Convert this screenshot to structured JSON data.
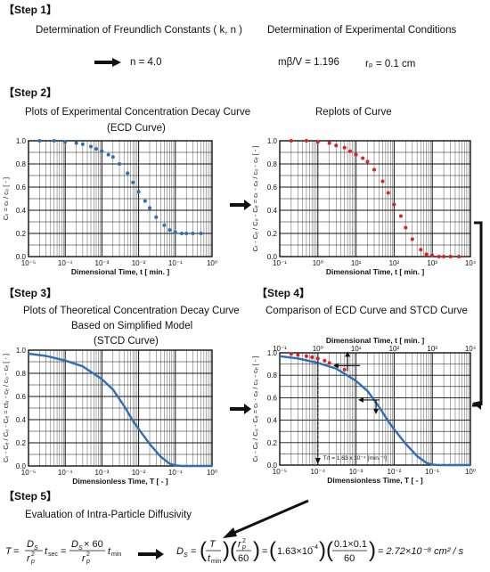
{
  "step1": {
    "label": "【Step 1】",
    "freundlich": "Determination of Freundlich Constants ( k, n )",
    "experimental": "Determination of Experimental Conditions",
    "n_value": "n = 4.0",
    "mbv_value": "mβ/V = 1.196",
    "rp_value": "rₚ = 0.1 cm"
  },
  "step2": {
    "label": "【Step 2】",
    "plots_title": "Plots of Experimental Concentration Decay Curve",
    "ecd": "(ECD Curve)",
    "replots_title": "Replots of Curve"
  },
  "step3": {
    "label": "【Step 3】",
    "title1": "Plots of Theoretical Concentration Decay Curve",
    "title2": "Based on Simplified Model",
    "stcd": "(STCD Curve)"
  },
  "step4": {
    "label": "【Step 4】",
    "title": "Comparison of ECD Curve  and STCD Curve",
    "annotation": "T/t = 1.63 x 10⁻⁴ [min.⁻¹]"
  },
  "step5": {
    "label": "【Step 5】",
    "title": "Evaluation of Intra-Particle Diffusivity",
    "result": "= 2.72×10⁻⁸ cm² / s"
  },
  "colors": {
    "blue": "#2f6db5",
    "red": "#e02020",
    "grid": "#222222"
  },
  "chart_data": [
    {
      "type": "scatter",
      "title": "Plots of Experimental Concentration Decay Curve",
      "xlabel": "Dimensional Time, t  [ min. ]",
      "ylabel": "Cₜ = cₜ / c₀  [ - ]",
      "xscale": "log",
      "xlim": [
        1e-05,
        1
      ],
      "ylim": [
        0,
        1
      ],
      "xtick_labels": [
        "10⁻⁵",
        "10⁻⁴",
        "10⁻³",
        "10⁻²",
        "10⁻¹",
        "10⁰"
      ],
      "ytick_labels": [
        "0.0",
        "0.2",
        "0.4",
        "0.6",
        "0.8",
        "1.0"
      ],
      "color": "#2f6db5",
      "x": [
        2e-05,
        5e-05,
        0.0001,
        0.0002,
        0.0003,
        0.0005,
        0.0007,
        0.001,
        0.0015,
        0.002,
        0.003,
        0.005,
        0.007,
        0.01,
        0.015,
        0.02,
        0.03,
        0.05,
        0.07,
        0.1,
        0.15,
        0.2,
        0.3,
        0.5
      ],
      "y": [
        1.0,
        1.0,
        0.99,
        0.98,
        0.97,
        0.95,
        0.93,
        0.91,
        0.88,
        0.86,
        0.8,
        0.72,
        0.64,
        0.56,
        0.48,
        0.42,
        0.34,
        0.27,
        0.23,
        0.21,
        0.2,
        0.2,
        0.2,
        0.2
      ]
    },
    {
      "type": "scatter",
      "title": "Replots of Curve",
      "xlabel": "Dimensional Time, t  [ min. ]",
      "ylabel": "Cₜ - Cₑ / C₀ - Cₑ = cₜ - cₑ / c₀ - cₑ  [ - ]",
      "xscale": "log",
      "xlim": [
        0.1,
        10000
      ],
      "ylim": [
        0,
        1
      ],
      "xtick_labels": [
        "10⁻¹",
        "10⁰",
        "10¹",
        "10²",
        "10³",
        "10⁴"
      ],
      "ytick_labels": [
        "0.0",
        "0.2",
        "0.4",
        "0.6",
        "0.8",
        "1.0"
      ],
      "color": "#e02020",
      "x": [
        0.2,
        0.5,
        1,
        2,
        3,
        5,
        7,
        10,
        15,
        20,
        30,
        50,
        70,
        100,
        150,
        200,
        300,
        500,
        700,
        1000,
        1500,
        2000,
        3000,
        5000
      ],
      "y": [
        1.0,
        1.0,
        0.99,
        0.98,
        0.96,
        0.94,
        0.91,
        0.88,
        0.85,
        0.82,
        0.75,
        0.65,
        0.55,
        0.45,
        0.35,
        0.25,
        0.15,
        0.06,
        0.02,
        0.01,
        0.0,
        0.0,
        0.0,
        0.0
      ]
    },
    {
      "type": "line",
      "title": "Plots of Theoretical Concentration Decay Curve",
      "xlabel": "Dimensionless Time, T  [ - ]",
      "ylabel": "Cₜ - Cₑ / C₀ - Cₑ = ct₀ - cₑ / c₀ - cₑ  [ - ]",
      "xscale": "log",
      "xlim": [
        1e-05,
        1
      ],
      "ylim": [
        0,
        1
      ],
      "xtick_labels": [
        "10⁻⁵",
        "10⁻⁴",
        "10⁻³",
        "10⁻²",
        "10⁻¹",
        "10⁰"
      ],
      "ytick_labels": [
        "0.0",
        "0.2",
        "0.4",
        "0.6",
        "0.8",
        "1.0"
      ],
      "color": "#2f6db5",
      "x": [
        1e-05,
        3e-05,
        0.0001,
        0.0003,
        0.001,
        0.002,
        0.004,
        0.007,
        0.01,
        0.02,
        0.04,
        0.07,
        0.1,
        0.15,
        0.2,
        0.3,
        0.5,
        1
      ],
      "y": [
        0.97,
        0.95,
        0.91,
        0.86,
        0.75,
        0.66,
        0.52,
        0.39,
        0.32,
        0.19,
        0.08,
        0.02,
        0.005,
        0.0,
        0.0,
        0.0,
        0.0,
        0.0
      ]
    },
    {
      "type": "line",
      "title": "Comparison of ECD Curve  and STCD Curve",
      "xlabel": "Dimensionless Time, T  [ - ]",
      "x2label": "Dimensional Time, t  [ min. ]",
      "ylabel": "Cₜ - Cₑ / C₀ - Cₑ = cₜ - cₑ / c₀ - cₑ  [ - ]",
      "xscale": "log",
      "xlim": [
        1e-05,
        1
      ],
      "ylim": [
        0,
        1
      ],
      "xtick_labels": [
        "10⁻⁵",
        "10⁻⁴",
        "10⁻³",
        "10⁻²",
        "10⁻¹",
        "10⁰"
      ],
      "x2tick_labels": [
        "10⁻¹",
        "10⁰",
        "10¹",
        "10²",
        "10³",
        "10⁴"
      ],
      "ytick_labels": [
        "0.0",
        "0.2",
        "0.4",
        "0.6",
        "0.8",
        "1.0"
      ],
      "series": [
        {
          "color": "#2f6db5",
          "x": [
            1e-05,
            3e-05,
            0.0001,
            0.0003,
            0.001,
            0.002,
            0.004,
            0.007,
            0.01,
            0.02,
            0.04,
            0.07,
            0.1,
            0.15,
            0.2,
            0.3,
            0.5,
            1
          ],
          "y": [
            0.97,
            0.95,
            0.91,
            0.86,
            0.75,
            0.66,
            0.52,
            0.39,
            0.32,
            0.19,
            0.08,
            0.02,
            0.005,
            0.0,
            0.0,
            0.0,
            0.0,
            0.0
          ]
        },
        {
          "color": "#e02020",
          "x": [
            2e-05,
            3e-05,
            5e-05,
            7e-05,
            0.0001,
            0.00015,
            0.0002,
            0.0003,
            0.0005
          ],
          "y": [
            0.99,
            0.98,
            0.97,
            0.96,
            0.95,
            0.93,
            0.91,
            0.89,
            0.85
          ]
        }
      ]
    }
  ]
}
